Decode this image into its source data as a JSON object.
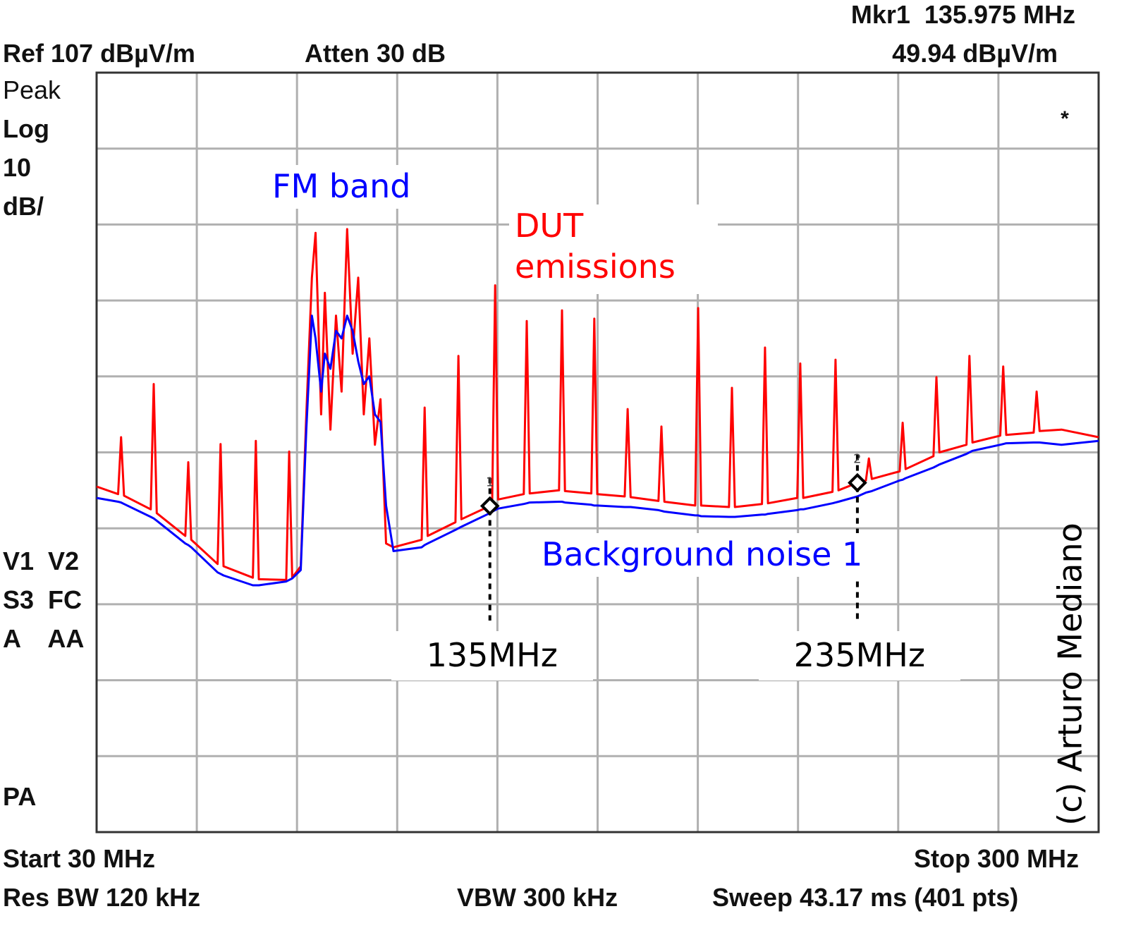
{
  "chart_data": {
    "type": "line",
    "header": {
      "ref": "Ref 107 dBµV/m",
      "atten": "Atten 30 dB",
      "marker_freq": "Mkr1  135.975 MHz",
      "marker_level": "49.94 dBµV/m",
      "flag": "*"
    },
    "side_labels": [
      "Peak",
      "Log",
      "10",
      "dB/",
      "V1  V2",
      "S3  FC",
      "A    AA",
      "PA"
    ],
    "footer": {
      "start": "Start 30 MHz",
      "stop": "Stop 300 MHz",
      "rbw": "Res BW 120 kHz",
      "vbw": "VBW 300 kHz",
      "sweep": "Sweep 43.17 ms (401 pts)"
    },
    "annotations": {
      "fm": "FM band",
      "copyright": "(c) Arturo Mediano"
    },
    "xlim": [
      30,
      300
    ],
    "ylim": [
      7,
      107
    ],
    "xticks": [
      30,
      57,
      84,
      111,
      138,
      165,
      192,
      219,
      246,
      273,
      300
    ],
    "yticks": [
      7,
      17,
      27,
      37,
      47,
      57,
      67,
      77,
      87,
      97,
      107
    ],
    "grid": true,
    "x": [
      30,
      35.8,
      36.6,
      37.4,
      44.6,
      45.4,
      46.2,
      53.9,
      54.7,
      55.5,
      62.6,
      63.4,
      64.2,
      72.1,
      72.9,
      73.7,
      81.1,
      81.9,
      82.7,
      85,
      86.5,
      88,
      89,
      90.5,
      91.5,
      93,
      94.5,
      96,
      97.5,
      99,
      100.5,
      102,
      103.5,
      105,
      106.5,
      108,
      110,
      117.6,
      118.4,
      119.2,
      126.7,
      127.5,
      128.3,
      135.975,
      136.6,
      137.4,
      138.2,
      145.1,
      145.9,
      146.7,
      154.6,
      155.4,
      156.2,
      163.3,
      164.1,
      164.9,
      172.3,
      173.1,
      173.9,
      181.4,
      182.2,
      183,
      191.3,
      192.1,
      192.9,
      200.4,
      201.2,
      202,
      209.3,
      210.1,
      210.9,
      218.8,
      219.6,
      220.4,
      228.3,
      229.1,
      229.9,
      235,
      237.3,
      238.1,
      238.9,
      246.4,
      247.2,
      248,
      255.5,
      256.3,
      257.1,
      264.4,
      265.2,
      266,
      273.5,
      274.3,
      275.1,
      282.5,
      283.3,
      284.1,
      290,
      300
    ],
    "series": [
      {
        "name": "DUT emissions",
        "color": "#ff0000",
        "values": [
          52.5,
          51.5,
          59.0,
          51.3,
          49.5,
          66.0,
          49,
          46,
          55.7,
          45.5,
          42.3,
          58.1,
          42,
          40.5,
          58.5,
          40.3,
          40.2,
          57.1,
          40.5,
          42,
          62,
          80,
          85.9,
          62,
          78,
          60,
          75,
          65,
          86.4,
          70,
          80,
          62,
          72,
          58,
          64,
          45,
          44.5,
          45.5,
          62.9,
          46,
          47.8,
          69.7,
          48.2,
          49.94,
          50.5,
          79.0,
          50.8,
          51.5,
          74.3,
          51.6,
          52,
          75.7,
          51.9,
          51.6,
          74.6,
          51.5,
          51.2,
          62.7,
          51.1,
          50.6,
          60.4,
          50.5,
          50,
          76.0,
          50,
          49.8,
          65.5,
          49.8,
          50.2,
          70.8,
          50.3,
          51,
          68.7,
          51,
          51.8,
          69.2,
          52,
          53,
          53.3,
          56.2,
          53.5,
          54.5,
          60.9,
          54.8,
          56.5,
          66.9,
          57,
          58,
          69.7,
          58.3,
          59.2,
          68.3,
          59.3,
          59.6,
          65,
          59.8,
          60,
          59
        ]
      },
      {
        "name": "Background noise 1",
        "color": "#0000ff",
        "values": [
          51,
          50.5,
          50.4,
          50.2,
          48.5,
          48.3,
          48,
          45,
          44.8,
          44.5,
          41.2,
          41,
          40.8,
          39.5,
          39.5,
          39.5,
          40,
          40.2,
          40.4,
          41.5,
          60,
          75,
          72,
          65,
          70,
          68,
          73,
          72,
          75,
          73,
          69,
          66,
          67,
          62,
          61,
          50,
          44,
          44.5,
          44.8,
          45,
          46.8,
          47,
          47.2,
          49,
          49.2,
          49.4,
          49.6,
          50.2,
          50.3,
          50.4,
          50.5,
          50.5,
          50.4,
          50.1,
          50,
          50,
          49.8,
          49.8,
          49.8,
          49.4,
          49.3,
          49.2,
          48.7,
          48.7,
          48.6,
          48.5,
          48.5,
          48.5,
          48.8,
          48.8,
          48.9,
          49.4,
          49.5,
          49.5,
          50.3,
          50.4,
          50.5,
          51.2,
          51.7,
          51.8,
          51.9,
          53.3,
          53.4,
          53.6,
          55,
          55.2,
          55.4,
          56.8,
          57,
          57.2,
          58,
          58.1,
          58.2,
          58.3,
          58.3,
          58.3,
          58,
          58.5
        ]
      }
    ],
    "markers": [
      {
        "label": "1",
        "x": 135.975,
        "value": 49.94,
        "annotation": "135MHz"
      },
      {
        "label": "2",
        "x": 235,
        "value": 53,
        "annotation": "235MHz"
      }
    ]
  }
}
